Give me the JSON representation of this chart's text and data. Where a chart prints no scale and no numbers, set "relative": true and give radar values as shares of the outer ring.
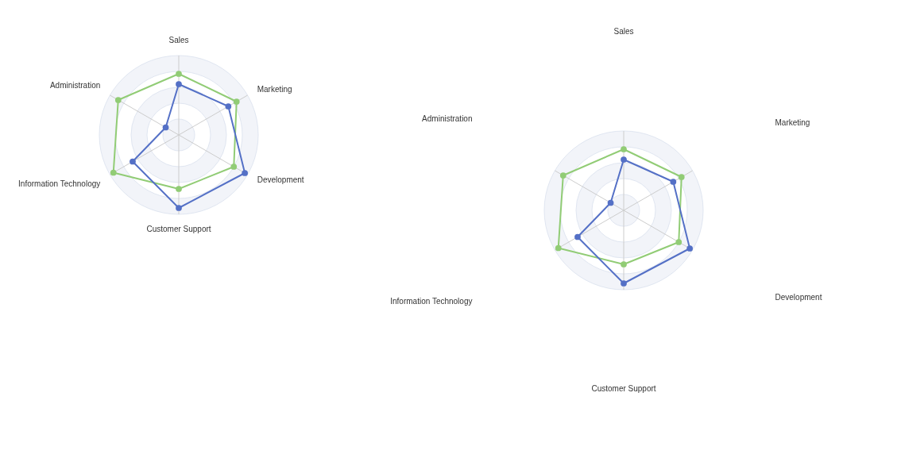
{
  "chart_data": [
    {
      "type": "radar",
      "relative": true,
      "grid": true,
      "marker": "circle",
      "categories": [
        "Sales",
        "Marketing",
        "Development",
        "Customer Support",
        "Information Technology",
        "Administration"
      ],
      "series": [
        {
          "color": "#91cc75",
          "values": [
            0.77,
            0.84,
            0.8,
            0.68,
            0.95,
            0.88
          ]
        },
        {
          "color": "#5470c6",
          "values": [
            0.64,
            0.72,
            0.96,
            0.92,
            0.67,
            0.19
          ]
        }
      ]
    },
    {
      "type": "radar",
      "relative": true,
      "grid": true,
      "marker": "circle",
      "categories": [
        "Sales",
        "Marketing",
        "Development",
        "Customer Support",
        "Information Technology",
        "Administration"
      ],
      "series": [
        {
          "color": "#91cc75",
          "values": [
            0.77,
            0.84,
            0.8,
            0.68,
            0.95,
            0.88
          ]
        },
        {
          "color": "#5470c6",
          "values": [
            0.64,
            0.72,
            0.96,
            0.92,
            0.67,
            0.19
          ]
        }
      ]
    }
  ]
}
